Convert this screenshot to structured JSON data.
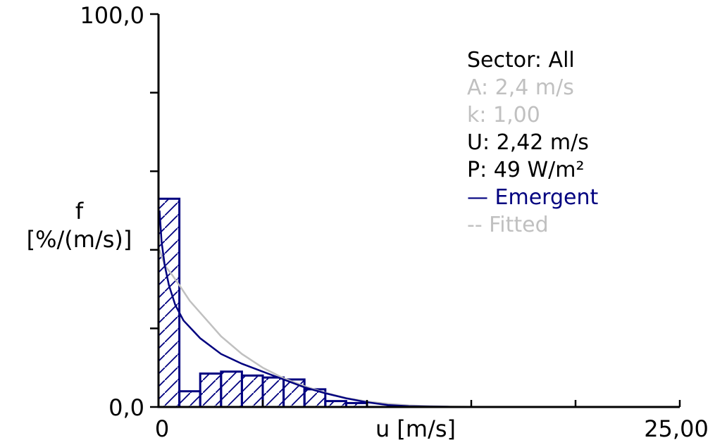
{
  "chart_data": {
    "type": "bar",
    "xlabel": "u [m/s]",
    "ylabel_line1": "f",
    "ylabel_line2": "[%/(m/s)]",
    "xlim": [
      0,
      25
    ],
    "ylim": [
      0,
      100
    ],
    "x_tick_labels": [
      "0",
      "25,00"
    ],
    "y_tick_labels": [
      "100,0",
      "0,0"
    ],
    "bin_width": 1,
    "bins": [
      {
        "x0": 0,
        "x1": 1,
        "value": 53
      },
      {
        "x0": 1,
        "x1": 2,
        "value": 4
      },
      {
        "x0": 2,
        "x1": 3,
        "value": 8.5
      },
      {
        "x0": 3,
        "x1": 4,
        "value": 9
      },
      {
        "x0": 4,
        "x1": 5,
        "value": 8
      },
      {
        "x0": 5,
        "x1": 6,
        "value": 7.5
      },
      {
        "x0": 6,
        "x1": 7,
        "value": 7
      },
      {
        "x0": 7,
        "x1": 8,
        "value": 4.5
      },
      {
        "x0": 8,
        "x1": 9,
        "value": 1.5
      },
      {
        "x0": 9,
        "x1": 10,
        "value": 1
      }
    ],
    "series": [
      {
        "name": "Emergent",
        "color": "#00007f",
        "points": [
          [
            0.05,
            50
          ],
          [
            0.15,
            42
          ],
          [
            0.3,
            36
          ],
          [
            0.5,
            31
          ],
          [
            0.8,
            26
          ],
          [
            1.2,
            22
          ],
          [
            2,
            17.5
          ],
          [
            3,
            13.5
          ],
          [
            4,
            11
          ],
          [
            5,
            9
          ],
          [
            6,
            7
          ],
          [
            7,
            5
          ],
          [
            8,
            3.5
          ],
          [
            9,
            2.2
          ],
          [
            10,
            1.2
          ],
          [
            11,
            0.5
          ],
          [
            12,
            0.2
          ],
          [
            13,
            0.1
          ],
          [
            14,
            0.05
          ],
          [
            15,
            0.02
          ],
          [
            16,
            0.01
          ]
        ]
      },
      {
        "name": "Fitted",
        "color": "#c0c0c0",
        "points": [
          [
            0.05,
            40
          ],
          [
            0.3,
            36
          ],
          [
            0.6,
            34
          ],
          [
            1,
            31
          ],
          [
            1.5,
            27
          ],
          [
            2,
            24
          ],
          [
            3,
            18
          ],
          [
            4,
            13.5
          ],
          [
            5,
            10
          ],
          [
            6,
            7.3
          ],
          [
            7,
            5.3
          ],
          [
            8,
            3.6
          ],
          [
            9,
            2.3
          ],
          [
            10,
            1.4
          ],
          [
            11,
            0.8
          ],
          [
            12,
            0.4
          ],
          [
            13,
            0.2
          ],
          [
            14,
            0.1
          ],
          [
            15,
            0.05
          ],
          [
            16,
            0.02
          ]
        ]
      }
    ],
    "grid": false,
    "legend_position": "top-right"
  },
  "info": {
    "sector": "Sector: All",
    "a_value": "A: 2,4 m/s",
    "k_value": "k: 1,00",
    "u_value": "U: 2,42 m/s",
    "p_value": "P: 49 W/m²",
    "legend_emergent": "— Emergent",
    "legend_fitted": "-- Fitted"
  },
  "colors": {
    "histogram": "#00007f",
    "fitted": "#c0c0c0",
    "axis": "#000000"
  }
}
